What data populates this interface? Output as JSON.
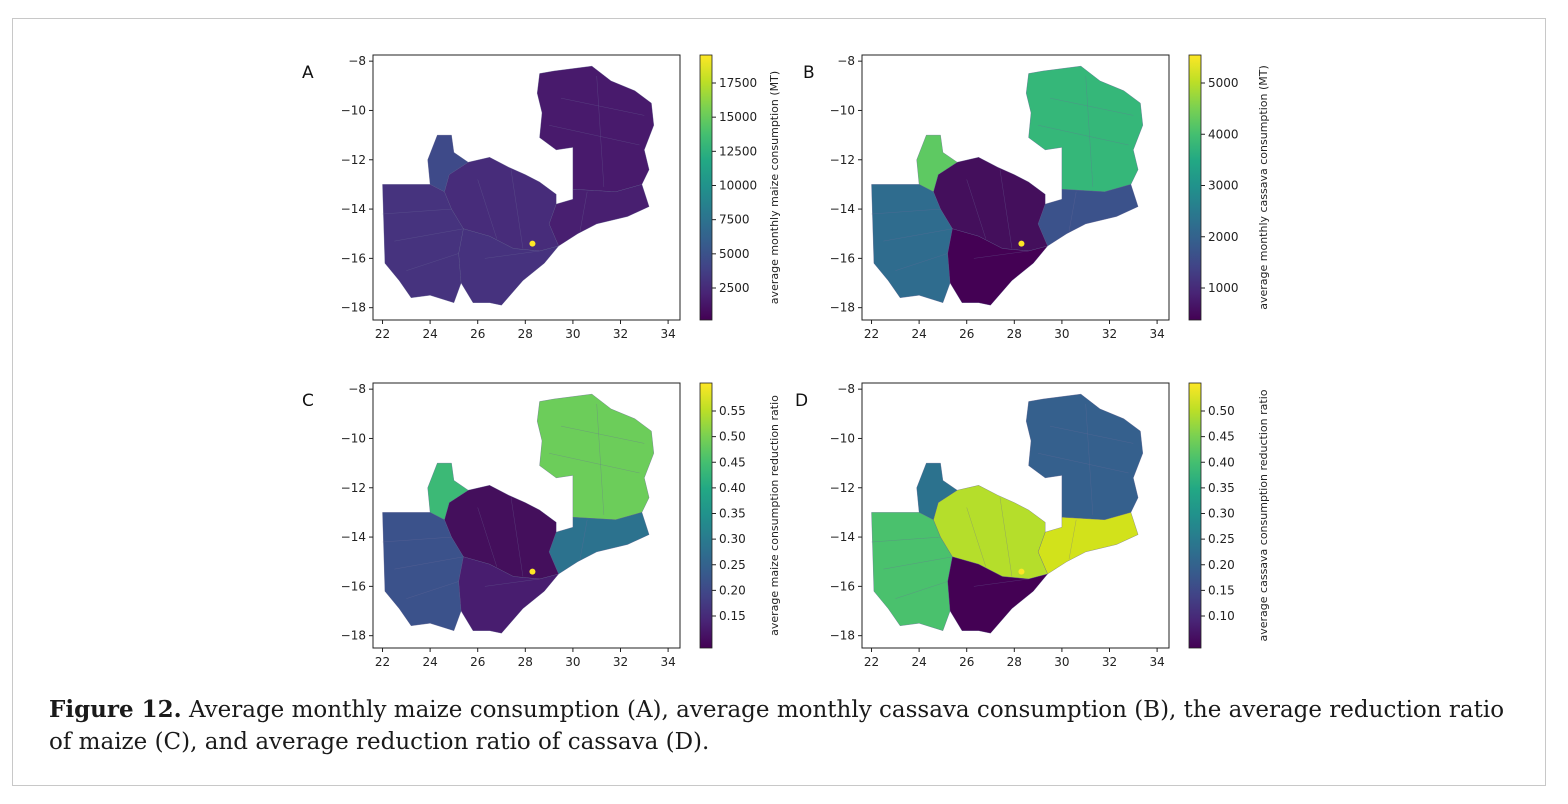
{
  "figure": {
    "label": "Figure 12.",
    "caption": "Average monthly maize consumption (A), average monthly cassava consumption (B), the average reduction ratio of maize (C), and average reduction ratio of cassava (D)."
  },
  "axes": {
    "x_ticks": [
      "22",
      "24",
      "26",
      "28",
      "30",
      "32",
      "34"
    ],
    "y_ticks": [
      "−8",
      "−10",
      "−12",
      "−14",
      "−16",
      "−18"
    ]
  },
  "panels": [
    {
      "id": "A",
      "letter": "A",
      "colorbar_label": "average monthly maize consumption (MT)",
      "colorbar_ticks": [
        "17500",
        "15000",
        "12500",
        "10000",
        "7500",
        "5000",
        "2500"
      ],
      "colors": {
        "west": "#46337e",
        "northwest": "#3e4a89",
        "central": "#472c7a",
        "south": "#46327e",
        "east": "#481f70",
        "north": "#481a6c",
        "lusaka": "#fde725"
      }
    },
    {
      "id": "B",
      "letter": "B",
      "colorbar_label": "average monthly cassava consumption (MT)",
      "colorbar_ticks": [
        "5000",
        "4000",
        "3000",
        "2000",
        "1000"
      ],
      "colors": {
        "west": "#2f6c8e",
        "northwest": "#5ec962",
        "central": "#440f5c",
        "south": "#440154",
        "east": "#3b528b",
        "north": "#35b779",
        "lusaka": "#fde725"
      }
    },
    {
      "id": "C",
      "letter": "C",
      "colorbar_label": "average maize consumption reduction ratio",
      "colorbar_ticks": [
        "0.55",
        "0.50",
        "0.45",
        "0.40",
        "0.35",
        "0.30",
        "0.25",
        "0.20",
        "0.15"
      ],
      "colors": {
        "west": "#3b528b",
        "northwest": "#3cb976",
        "central": "#440f5c",
        "south": "#481d6f",
        "east": "#2c728e",
        "north": "#6ccd5a",
        "lusaka": "#fde725"
      }
    },
    {
      "id": "D",
      "letter": "D",
      "colorbar_label": "average cassava consumption reduction ratio",
      "colorbar_ticks": [
        "0.50",
        "0.45",
        "0.40",
        "0.35",
        "0.30",
        "0.25",
        "0.20",
        "0.15",
        "0.10"
      ],
      "colors": {
        "west": "#4ac16d",
        "northwest": "#2c728e",
        "central": "#b5de2b",
        "south": "#440154",
        "east": "#d2e21b",
        "north": "#35608d",
        "lusaka": "#fde725"
      }
    }
  ]
}
